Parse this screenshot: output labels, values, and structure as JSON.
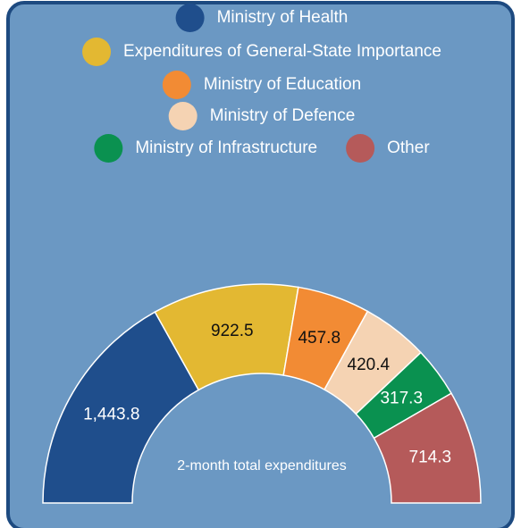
{
  "chart_data": {
    "type": "pie",
    "half": true,
    "categories": [
      "Ministry of Health",
      "Expenditures of General-State Importance",
      "Ministry of Education",
      "Ministry of Defence",
      "Ministry of Infrastructure",
      "Other"
    ],
    "values": [
      1443.8,
      922.5,
      457.8,
      420.4,
      317.3,
      714.3
    ],
    "value_labels": [
      "1,443.8",
      "922.5",
      "457.8",
      "420.4",
      "317.3",
      "714.3"
    ],
    "colors": [
      "#1f4e8c",
      "#e3b832",
      "#f28b34",
      "#f5d3b3",
      "#0a9150",
      "#b55a5a"
    ],
    "center_label": "2-month total expenditures",
    "legend": "top"
  }
}
